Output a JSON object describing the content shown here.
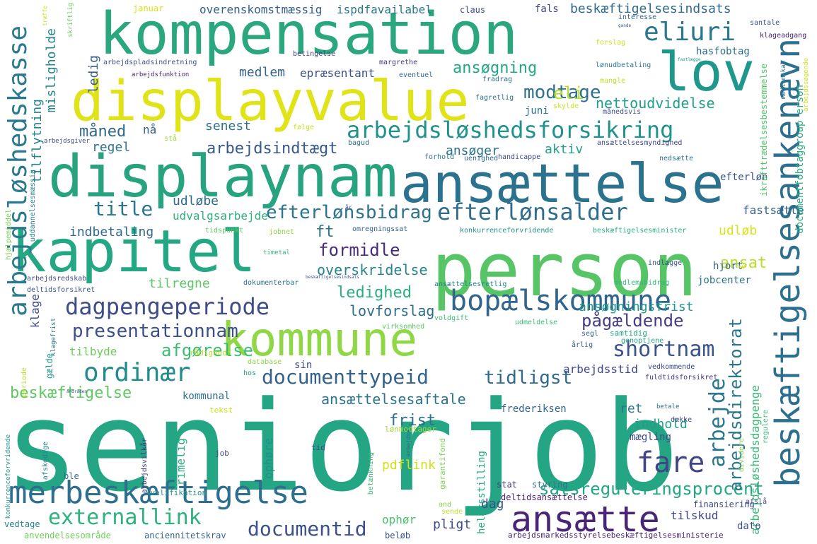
{
  "cloud": {
    "words": [
      {
        "text": "seniorjob",
        "color": "#24a584"
      },
      {
        "text": "person",
        "color": "#57c566"
      },
      {
        "text": "kompensation",
        "color": "#2aa77f"
      },
      {
        "text": "displayvalue",
        "color": "#dfe318"
      },
      {
        "text": "displaynam",
        "color": "#27a380"
      },
      {
        "text": "ansættelse",
        "color": "#2b728e"
      },
      {
        "text": "kapitel",
        "color": "#24a884"
      },
      {
        "text": "kommune",
        "color": "#8fd744"
      },
      {
        "text": "lov",
        "color": "#1f988b"
      },
      {
        "text": "merbeskæftigelse",
        "color": "#2e6e8e"
      },
      {
        "text": "bopælskommune",
        "color": "#32658e"
      },
      {
        "text": "beskæftigelsesankenævn",
        "color": "#2d6f8e"
      },
      {
        "text": "arbejdsløshedskasse",
        "color": "#2a798e"
      },
      {
        "text": "ansætte",
        "color": "#482576"
      },
      {
        "text": "dagpengeperiode",
        "color": "#3e4c8a"
      },
      {
        "text": "ordinær",
        "color": "#228c8d"
      },
      {
        "text": "arbejdsløshedsforsikring",
        "color": "#20928c"
      },
      {
        "text": "presentationnam",
        "color": "#3d4e8a"
      },
      {
        "text": "efterlønsalder",
        "color": "#2f6c8e"
      },
      {
        "text": "externallink",
        "color": "#2db27d"
      },
      {
        "text": "documenttypeid",
        "color": "#33638d"
      },
      {
        "text": "eliuri",
        "color": "#2a788e"
      },
      {
        "text": "documentid",
        "color": "#3c508b"
      },
      {
        "text": "fare",
        "color": "#414487"
      },
      {
        "text": "shortnam",
        "color": "#3a538b"
      },
      {
        "text": "satsreguleringsprocent",
        "color": "#22a785"
      },
      {
        "text": "arbejde",
        "color": "#2a778e"
      },
      {
        "text": "modtage",
        "color": "#2d718e"
      },
      {
        "text": "beskæftigelse",
        "color": "#5ec962"
      },
      {
        "text": "eli",
        "color": "#b5de2b"
      },
      {
        "text": "ledighed",
        "color": "#2ab07f"
      },
      {
        "text": "tidligst",
        "color": "#2f6b8e"
      },
      {
        "text": "afgørelse",
        "color": "#3dbc74"
      },
      {
        "text": "formidle",
        "color": "#472c7a"
      },
      {
        "text": "title",
        "color": "#2a768e"
      },
      {
        "text": "efterlønsbidrag",
        "color": "#2b748e"
      },
      {
        "text": "arbejdsindtægt",
        "color": "#38588c"
      },
      {
        "text": "ansøgning",
        "color": "#22a785"
      },
      {
        "text": "nettoudvidelse",
        "color": "#1f9e89"
      },
      {
        "text": "måned",
        "color": "#31688e"
      },
      {
        "text": "overskridelse",
        "color": "#25848e"
      },
      {
        "text": "pågældende",
        "color": "#433e85"
      },
      {
        "text": "arbejdsdirektorat",
        "color": "#2a768e"
      },
      {
        "text": "ansættelsesaftale",
        "color": "#2b748e"
      },
      {
        "text": "frist",
        "color": "#2c728e"
      },
      {
        "text": "lovforslag",
        "color": "#2e6e8e"
      },
      {
        "text": "ansøgningsfrist",
        "color": "#1f988b"
      },
      {
        "text": "beskæftigelsesindsats",
        "color": "#306a8e"
      },
      {
        "text": "overenskomstmæssig",
        "color": "#34608d"
      },
      {
        "text": "ispdfavailabel",
        "color": "#2a788e"
      },
      {
        "text": "arbejdsløshedsdagpenge",
        "color": "#3bbb75"
      },
      {
        "text": "tilflytning",
        "color": "#25858e"
      },
      {
        "text": "misligholde",
        "color": "#24868e"
      },
      {
        "text": "arbejdsstid",
        "color": "#3f4889"
      },
      {
        "text": "ledig",
        "color": "#34608d"
      },
      {
        "text": "medlem",
        "color": "#33638d"
      },
      {
        "text": "epræsentant",
        "color": "#3b528b"
      },
      {
        "text": "senest",
        "color": "#2e6f8e"
      },
      {
        "text": "regel",
        "color": "#2b758e"
      },
      {
        "text": "aktiv",
        "color": "#20a386"
      },
      {
        "text": "ansøger",
        "color": "#2c718e"
      },
      {
        "text": "udløbe",
        "color": "#306a8e"
      },
      {
        "text": "udvalgsarbejde",
        "color": "#2db27d"
      },
      {
        "text": "fastsætte",
        "color": "#34608d"
      },
      {
        "text": "udløb",
        "color": "#d8e219"
      },
      {
        "text": "ft",
        "color": "#2b758e"
      },
      {
        "text": "indbetaling",
        "color": "#306a8e"
      },
      {
        "text": "ansat",
        "color": "#b8de29"
      },
      {
        "text": "tilregne",
        "color": "#5cc863"
      },
      {
        "text": "klage",
        "color": "#3d4e8a"
      },
      {
        "text": "tilbyde",
        "color": "#6ccd5a"
      },
      {
        "text": "ret",
        "color": "#2a788e"
      },
      {
        "text": "indhold",
        "color": "#1fa088"
      },
      {
        "text": "kommunal",
        "color": "#2d708e"
      },
      {
        "text": "sin",
        "color": "#3e4a89"
      },
      {
        "text": "ophøre",
        "color": "#21918c"
      },
      {
        "text": "rimelig",
        "color": "#29af7f"
      },
      {
        "text": "pdflink",
        "color": "#d0e11c"
      },
      {
        "text": "helårsstilling",
        "color": "#22a884"
      },
      {
        "text": "dag",
        "color": "#3b528b"
      },
      {
        "text": "pligt",
        "color": "#3e4a89"
      },
      {
        "text": "ophør",
        "color": "#4ac16d"
      },
      {
        "text": "tilskud",
        "color": "#3f4889"
      },
      {
        "text": "dato",
        "color": "#3d4d8a"
      },
      {
        "text": "hjort",
        "color": "#34618d"
      },
      {
        "text": "jobcenter",
        "color": "#2c728e"
      },
      {
        "text": "efterløn",
        "color": "#3c508b"
      },
      {
        "text": "hasfobtag",
        "color": "#2e6e8e"
      },
      {
        "text": "juni",
        "color": "#2a788e"
      },
      {
        "text": "fals",
        "color": "#414487"
      },
      {
        "text": "claus",
        "color": "#3e4989"
      },
      {
        "text": "januar",
        "color": "#d8e219"
      },
      {
        "text": "frederiksen",
        "color": "#31688e"
      },
      {
        "text": "mægling",
        "color": "#3e4a89"
      },
      {
        "text": "documentfobtaggroup erson",
        "color": "#27ad81"
      },
      {
        "text": "ikrafttrædelsesbestemmelse",
        "color": "#52c569"
      },
      {
        "text": "arbejdsmarkedsstyrelsebeskæftigelsesministerie",
        "color": "#481d6f"
      },
      {
        "text": "anciennitetskrav",
        "color": "#33638d"
      },
      {
        "text": "anvendelsesområde",
        "color": "#6ece58"
      },
      {
        "text": "vedtage",
        "color": "#24868e"
      },
      {
        "text": "beløb",
        "color": "#3a538b"
      },
      {
        "text": "deltidsansættelse",
        "color": "#482071"
      },
      {
        "text": "finansiering",
        "color": "#3f4889"
      },
      {
        "text": "styring",
        "color": "#2c728e"
      },
      {
        "text": "stat",
        "color": "#443983"
      },
      {
        "text": "kvalifikation",
        "color": "#21918c"
      },
      {
        "text": "lønmodtager",
        "color": "#a5db36"
      },
      {
        "text": "betænkning",
        "color": "#3bbb75"
      },
      {
        "text": "garantifond",
        "color": "#7ad151"
      },
      {
        "text": "tid",
        "color": "#3e4989"
      },
      {
        "text": "job",
        "color": "#3f4889"
      },
      {
        "text": "ble",
        "color": "#2e6f8e"
      },
      {
        "text": "tekst",
        "color": "#cde11d"
      },
      {
        "text": "rådighed",
        "color": "#b5de2b"
      },
      {
        "text": "database",
        "color": "#93d741"
      },
      {
        "text": "hos",
        "color": "#1fa088"
      },
      {
        "text": "periode",
        "color": "#b8de29"
      },
      {
        "text": "gælde",
        "color": "#1f9a8a"
      },
      {
        "text": "samtidig",
        "color": "#22a884"
      },
      {
        "text": "genoptjene",
        "color": "#21a685"
      },
      {
        "text": "årlig",
        "color": "#34618d"
      },
      {
        "text": "segl",
        "color": "#33638d"
      },
      {
        "text": "udmeldelse",
        "color": "#3bbb75"
      },
      {
        "text": "voldgift",
        "color": "#3dbc74"
      },
      {
        "text": "virksomhed",
        "color": "#5ec962"
      },
      {
        "text": "fuldtidsforsikret",
        "color": "#46337f"
      },
      {
        "text": "vedkommende",
        "color": "#3e4a89"
      },
      {
        "text": "betale",
        "color": "#2c728e"
      },
      {
        "text": "dække",
        "color": "#3d4d8a"
      },
      {
        "text": "medlemsbidrag",
        "color": "#32b67a"
      },
      {
        "text": "dokumenterbar",
        "color": "#2d708e"
      },
      {
        "text": "deltidsforsikret",
        "color": "#39568c"
      },
      {
        "text": "arbejdsredskab",
        "color": "#3e4989"
      },
      {
        "text": "ansættelsesretlig",
        "color": "#24868e"
      },
      {
        "text": "timetal",
        "color": "#35b779"
      },
      {
        "text": "indlægge",
        "color": "#3a538b"
      },
      {
        "text": "omregningssat",
        "color": "#34618d"
      },
      {
        "text": "jobnet",
        "color": "#8fd744"
      },
      {
        "text": "tidspunkt",
        "color": "#5ec962"
      },
      {
        "text": "hjælpemiddel",
        "color": "#7ad151"
      },
      {
        "text": "uddannelsesmæssig",
        "color": "#26828e"
      },
      {
        "text": "konkurrenceforvridende",
        "color": "#1f958b"
      },
      {
        "text": "beskæftigelsesminister",
        "color": "#29af7f"
      },
      {
        "text": "arbejdsgiver",
        "color": "#3e4989"
      },
      {
        "text": "ansættelsesmyndighed",
        "color": "#404688"
      },
      {
        "text": "nedsætte",
        "color": "#2c728e"
      },
      {
        "text": "handicappe",
        "color": "#3e4989"
      },
      {
        "text": "uenighed",
        "color": "#31688e"
      },
      {
        "text": "forhold",
        "color": "#2a778e"
      },
      {
        "text": "bagud",
        "color": "#2d718e"
      },
      {
        "text": "følge",
        "color": "#c8e020"
      },
      {
        "text": "stå",
        "color": "#a2da37"
      },
      {
        "text": "nå",
        "color": "#35608d"
      },
      {
        "text": "månedsvis",
        "color": "#3b528b"
      },
      {
        "text": "skylde",
        "color": "#cde11d"
      },
      {
        "text": "fagretlig",
        "color": "#2d708e"
      },
      {
        "text": "mangle",
        "color": "#c2df23"
      },
      {
        "text": "fradrag",
        "color": "#2e6e8e"
      },
      {
        "text": "eventuel",
        "color": "#31688e"
      },
      {
        "text": "arbejdsfunktion",
        "color": "#482677"
      },
      {
        "text": "lønudbetaling",
        "color": "#2a778e"
      },
      {
        "text": "medlemskab",
        "color": "#2e6f8e"
      },
      {
        "text": "arbejdssøgende",
        "color": "#d0e11c"
      },
      {
        "text": "arbejdspladsindretning",
        "color": "#3b528b"
      },
      {
        "text": "betingelse",
        "color": "#3f4788"
      },
      {
        "text": "margrethe",
        "color": "#463480"
      },
      {
        "text": "forslag",
        "color": "#cde11d"
      },
      {
        "text": "santale",
        "color": "#3a548c"
      },
      {
        "text": "klageadgang",
        "color": "#482475"
      },
      {
        "text": "interesse",
        "color": "#31688e"
      },
      {
        "text": "gande",
        "color": "#3a538b"
      },
      {
        "text": "fastlægge",
        "color": "#1f9e89"
      },
      {
        "text": "træffe",
        "color": "#cde11d"
      },
      {
        "text": "skriftlig",
        "color": "#6ccd5a"
      },
      {
        "text": "år",
        "color": "#39568c"
      },
      {
        "text": "konkurrenceforvridende",
        "color": "#1f988b"
      },
      {
        "text": "cv",
        "color": "#d8e219"
      },
      {
        "text": "beskæftigelsesindsats",
        "color": "#3b528b"
      },
      {
        "text": "afskedige",
        "color": "#25848e"
      },
      {
        "text": "arbejdsvilkår",
        "color": "#453781"
      },
      {
        "text": "arbejdse",
        "color": "#31688e"
      },
      {
        "text": "sende",
        "color": "#bddf26"
      },
      {
        "text": "afslå",
        "color": "#3e4a89"
      },
      {
        "text": "and",
        "color": "#84d44b"
      },
      {
        "text": "dividere",
        "color": "#7ad151"
      },
      {
        "text": "regulere",
        "color": "#35b779"
      },
      {
        "text": "klagefrist",
        "color": "#2a788e"
      },
      {
        "text": "andraden",
        "color": "#3b528b"
      }
    ]
  }
}
